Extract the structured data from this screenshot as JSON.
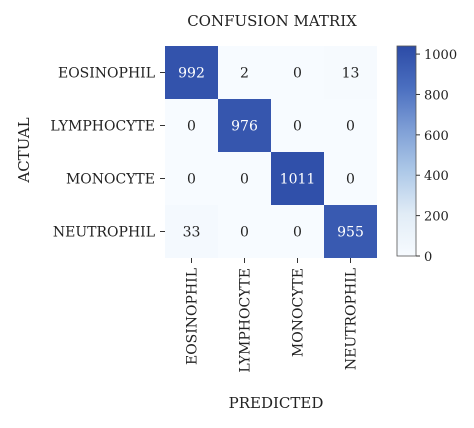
{
  "chart_data": {
    "type": "heatmap",
    "title": "CONFUSION MATRIX",
    "xlabel": "PREDICTED",
    "ylabel": "ACTUAL",
    "row_labels": [
      "EOSINOPHIL",
      "LYMPHOCYTE",
      "MONOCYTE",
      "NEUTROPHIL"
    ],
    "col_labels": [
      "EOSINOPHIL",
      "LYMPHOCYTE",
      "MONOCYTE",
      "NEUTROPHIL"
    ],
    "matrix": [
      [
        992,
        2,
        0,
        13
      ],
      [
        0,
        976,
        0,
        0
      ],
      [
        0,
        0,
        1011,
        0
      ],
      [
        33,
        0,
        0,
        955
      ]
    ],
    "colorbar": {
      "min": 0,
      "max": 1040,
      "ticks": [
        "0",
        "200",
        "400",
        "600",
        "800",
        "1000"
      ],
      "colors": [
        "#f7fbff",
        "#e1ecf6",
        "#aec9e8",
        "#7f9fd6",
        "#4b6fc0",
        "#2c4ba6"
      ]
    },
    "grid": false,
    "legend": "colorbar-right"
  }
}
